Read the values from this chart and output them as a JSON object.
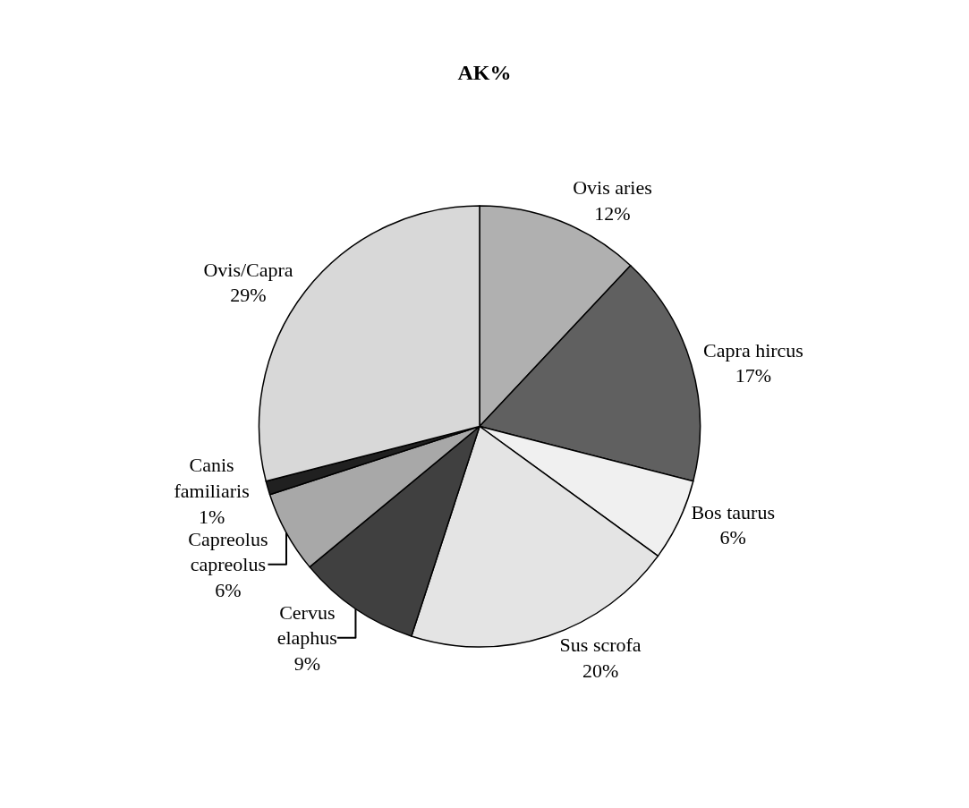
{
  "chart_data": {
    "type": "pie",
    "title": "AK%",
    "categories": [
      "Ovis aries",
      "Capra hircus",
      "Bos taurus",
      "Sus scrofa",
      "Cervus elaphus",
      "Capreolus capreolus",
      "Canis familiaris",
      "Ovis/Capra"
    ],
    "values": [
      12,
      17,
      6,
      20,
      9,
      6,
      1,
      29
    ],
    "value_labels": [
      "12%",
      "17%",
      "6%",
      "20%",
      "9%",
      "6%",
      "1%",
      "29%"
    ],
    "colors": [
      "#b0b0b0",
      "#606060",
      "#f0f0f0",
      "#e4e4e4",
      "#404040",
      "#a8a8a8",
      "#202020",
      "#d8d8d8"
    ],
    "legend": false
  }
}
